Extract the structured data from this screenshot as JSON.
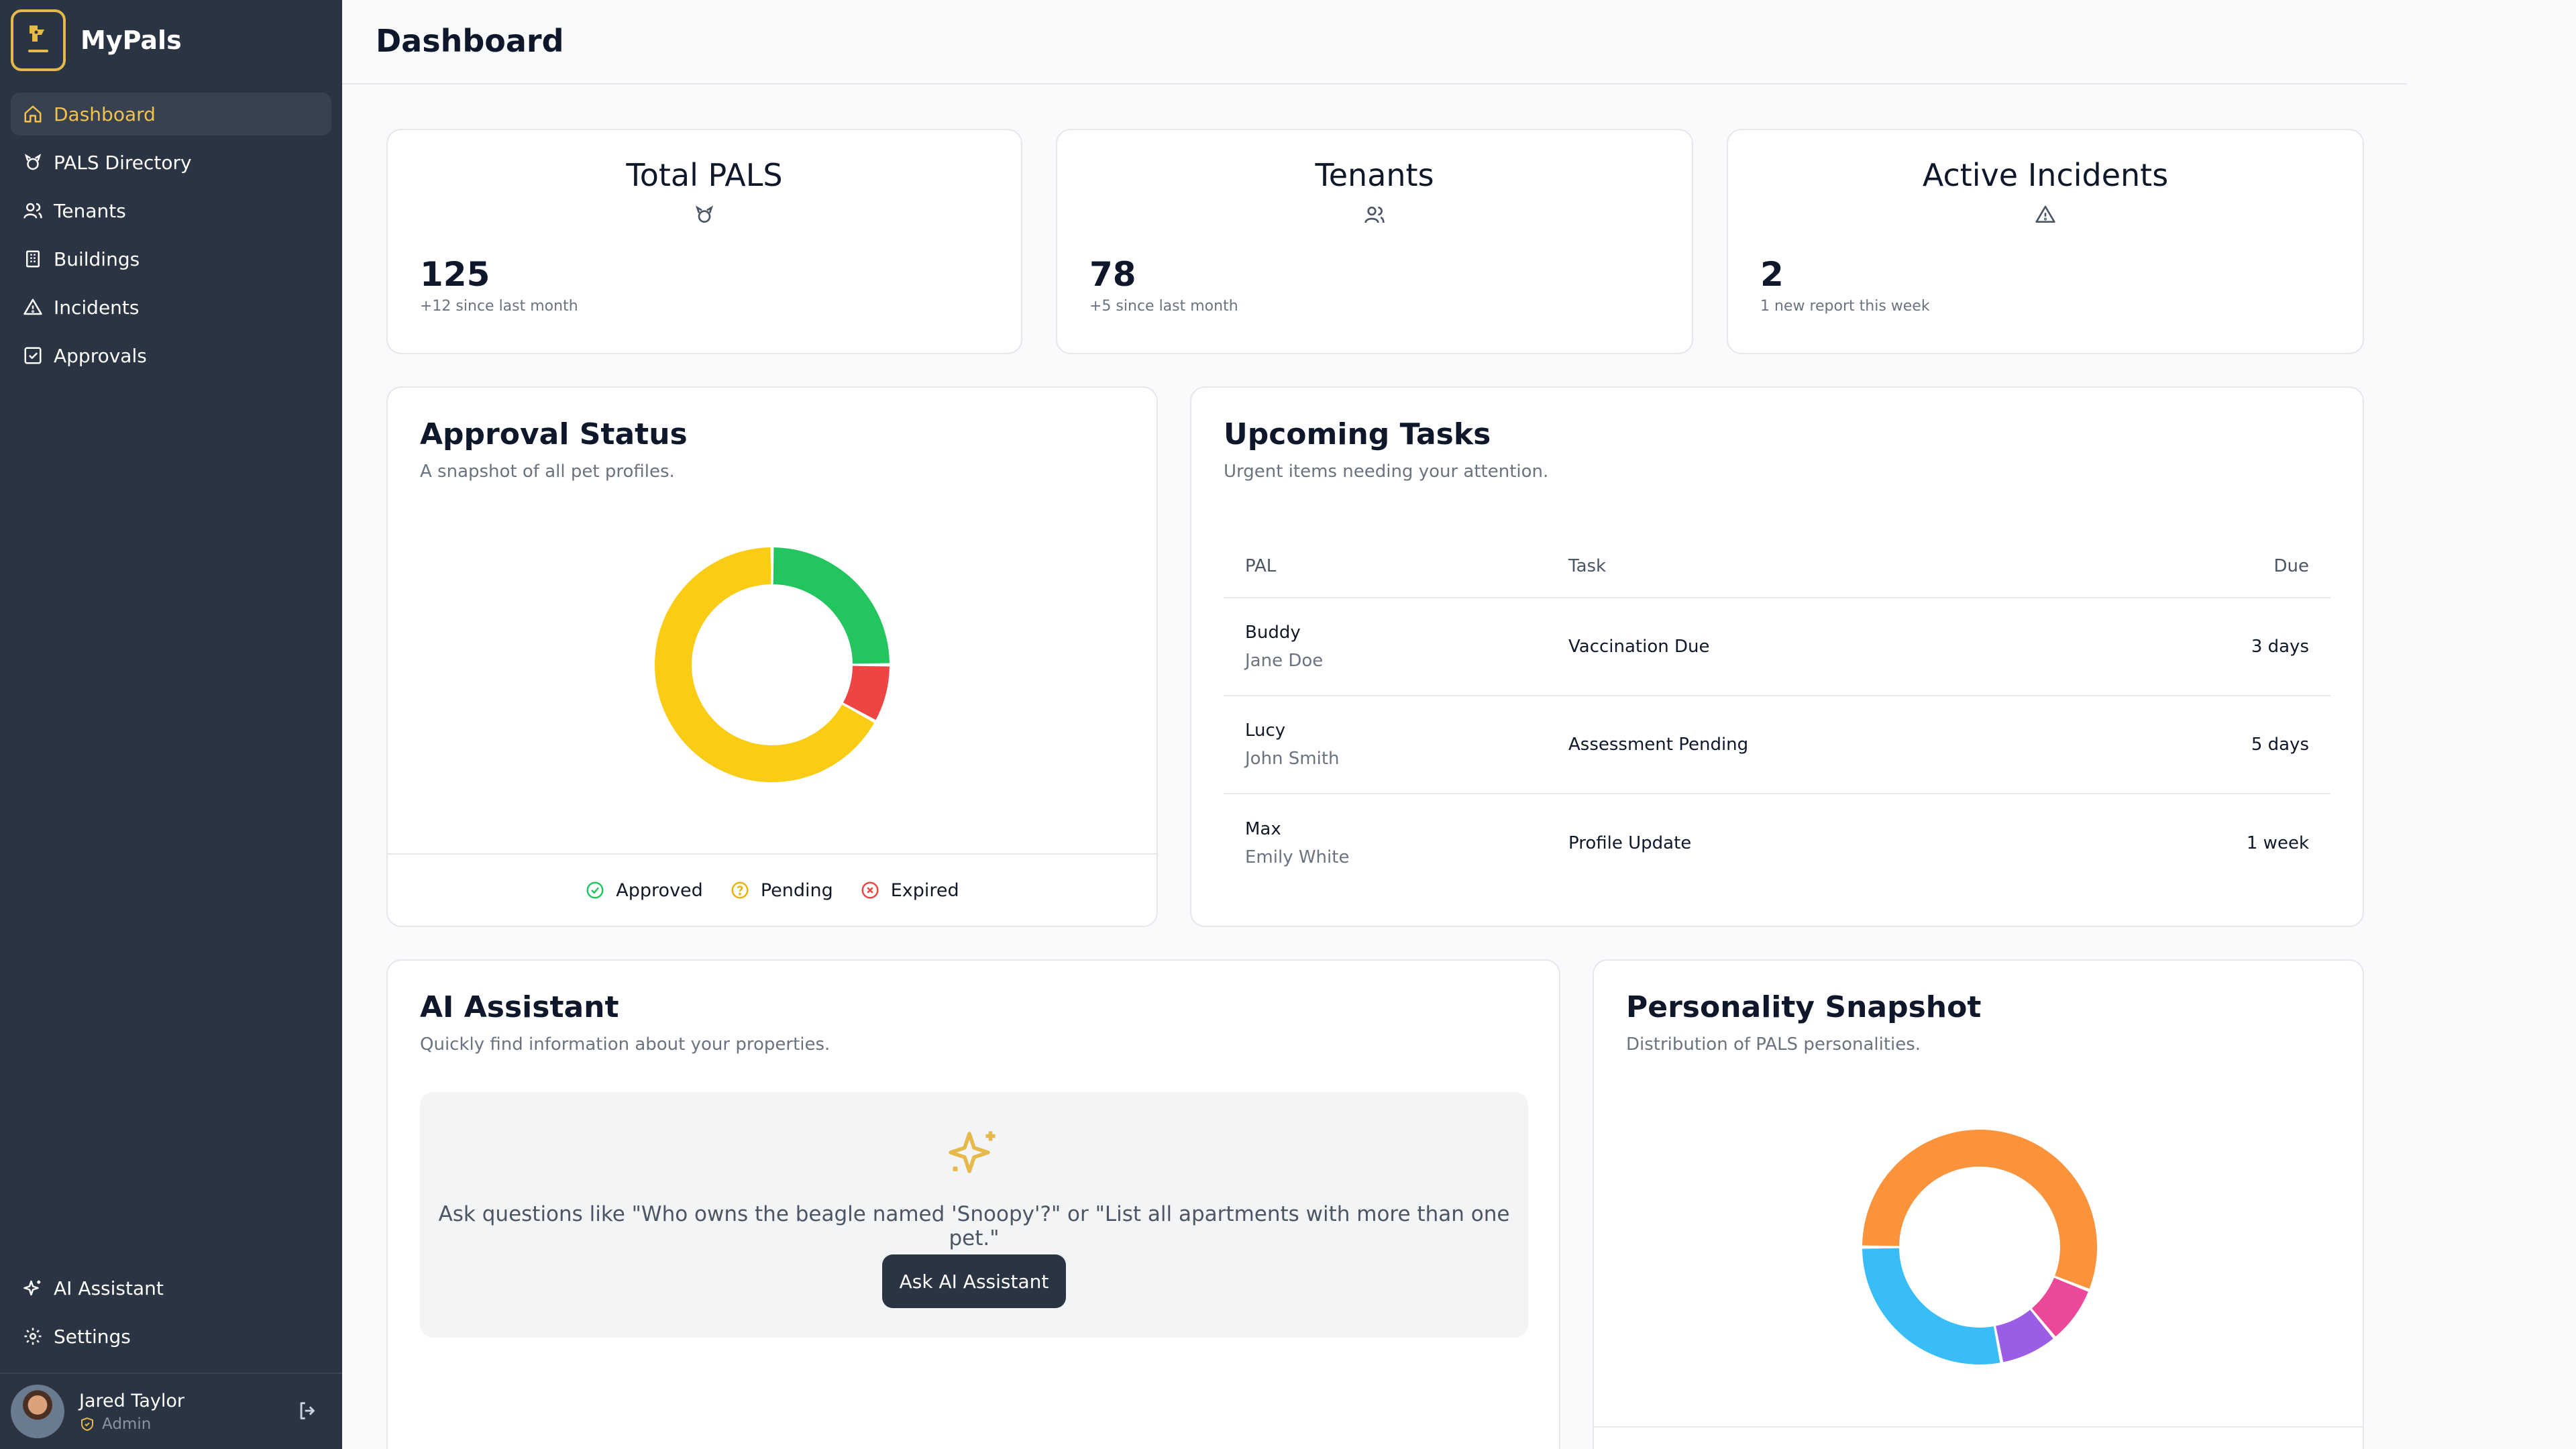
{
  "app": {
    "name": "MyPals",
    "page_title": "Dashboard"
  },
  "sidebar": {
    "items": [
      {
        "label": "Dashboard",
        "icon": "home-icon",
        "active": true
      },
      {
        "label": "PALS Directory",
        "icon": "paw-icon"
      },
      {
        "label": "Tenants",
        "icon": "users-icon"
      },
      {
        "label": "Buildings",
        "icon": "building-icon"
      },
      {
        "label": "Incidents",
        "icon": "warning-icon"
      },
      {
        "label": "Approvals",
        "icon": "check-square-icon"
      }
    ],
    "bottom_items": [
      {
        "label": "AI Assistant",
        "icon": "sparkles-icon"
      },
      {
        "label": "Settings",
        "icon": "gear-icon"
      }
    ],
    "user": {
      "name": "Jared Taylor",
      "role": "Admin"
    }
  },
  "stats": [
    {
      "title": "Total PALS",
      "value": "125",
      "note": "+12 since last month",
      "icon": "paw-icon"
    },
    {
      "title": "Tenants",
      "value": "78",
      "note": "+5 since last month",
      "icon": "users-icon"
    },
    {
      "title": "Active Incidents",
      "value": "2",
      "note": "1 new report this week",
      "icon": "warning-icon"
    }
  ],
  "approval": {
    "title": "Approval Status",
    "subtitle": "A snapshot of all pet profiles.",
    "legend": [
      {
        "label": "Approved",
        "color": "#22c55e"
      },
      {
        "label": "Pending",
        "color": "#facc15"
      },
      {
        "label": "Expired",
        "color": "#ef4444"
      }
    ]
  },
  "tasks": {
    "title": "Upcoming Tasks",
    "subtitle": "Urgent items needing your attention.",
    "headers": {
      "pal": "PAL",
      "task": "Task",
      "due": "Due"
    },
    "rows": [
      {
        "pal": "Buddy",
        "owner": "Jane Doe",
        "task": "Vaccination Due",
        "due": "3 days"
      },
      {
        "pal": "Lucy",
        "owner": "John Smith",
        "task": "Assessment Pending",
        "due": "5 days"
      },
      {
        "pal": "Max",
        "owner": "Emily White",
        "task": "Profile Update",
        "due": "1 week"
      }
    ]
  },
  "ai": {
    "title": "AI Assistant",
    "subtitle": "Quickly find information about your properties.",
    "prompt": "Ask questions like \"Who owns the beagle named 'Snoopy'?\" or \"List all apartments with more than one pet.\"",
    "button": "Ask AI Assistant"
  },
  "personality": {
    "title": "Personality Snapshot",
    "subtitle": "Distribution of PALS personalities."
  },
  "chart_data": [
    {
      "type": "pie",
      "categories": [
        "Approved",
        "Expired",
        "Pending"
      ],
      "values": [
        25,
        8,
        67
      ],
      "colors": [
        "#22c55e",
        "#ef4444",
        "#facc15"
      ],
      "start_angle": 0
    },
    {
      "type": "pie",
      "categories": [
        "",
        "",
        "",
        ""
      ],
      "values": [
        56,
        8,
        8,
        28
      ],
      "colors": [
        "#fb923c",
        "#ec4899",
        "#9b5de5",
        "#38bdf8"
      ],
      "start_angle": -90
    }
  ]
}
